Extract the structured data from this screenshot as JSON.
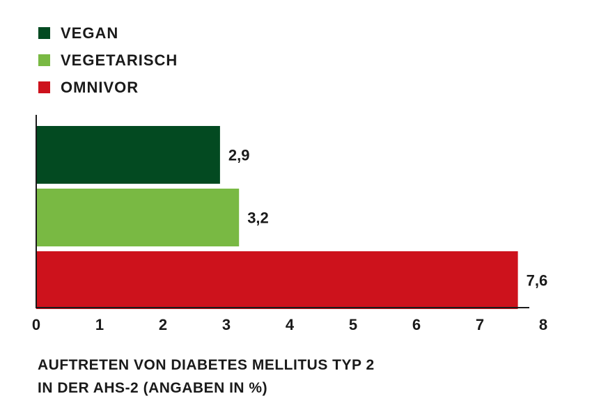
{
  "chart_data": {
    "type": "bar",
    "orientation": "horizontal",
    "categories": [
      "VEGAN",
      "VEGETARISCH",
      "OMNIVOR"
    ],
    "values": [
      2.9,
      3.2,
      7.6
    ],
    "value_labels": [
      "2,9",
      "3,2",
      "7,6"
    ],
    "colors": [
      "#034a21",
      "#79b943",
      "#cd121c"
    ],
    "xlim": [
      0,
      8
    ],
    "x_ticks": [
      "0",
      "1",
      "2",
      "3",
      "4",
      "5",
      "6",
      "7",
      "8"
    ],
    "grid": false,
    "legend_position": "top-left",
    "caption_line1": "AUFTRETEN VON DIABETES MELLITUS TYP 2",
    "caption_line2": "IN DER AHS-2 (ANGABEN IN %)"
  }
}
